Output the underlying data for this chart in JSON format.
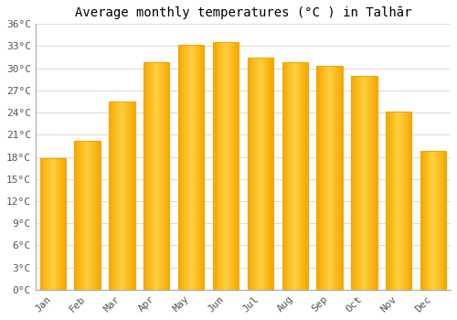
{
  "title": "Average monthly temperatures (°C ) in Talhār",
  "months": [
    "Jan",
    "Feb",
    "Mar",
    "Apr",
    "May",
    "Jun",
    "Jul",
    "Aug",
    "Sep",
    "Oct",
    "Nov",
    "Dec"
  ],
  "values": [
    17.8,
    20.2,
    25.5,
    30.8,
    33.2,
    33.5,
    31.5,
    30.8,
    30.3,
    29.0,
    24.2,
    18.8
  ],
  "bar_color_left": "#F5A800",
  "bar_color_center": "#FFD040",
  "bar_color_right": "#F5A800",
  "background_color": "#FFFFFF",
  "grid_color": "#DDDDDD",
  "ylim": [
    0,
    36
  ],
  "ytick_step": 3,
  "title_fontsize": 10,
  "tick_fontsize": 8,
  "font_family": "monospace"
}
